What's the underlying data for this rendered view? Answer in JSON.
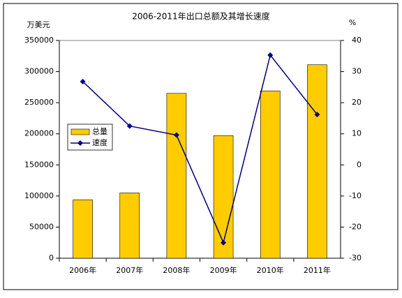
{
  "chart_data": {
    "type": "bar",
    "title": "2006-2011年出口总额及其增长速度",
    "y_label": "万美元",
    "y2_label": "%",
    "categories": [
      "2006年",
      "2007年",
      "2008年",
      "2009年",
      "2010年",
      "2011年"
    ],
    "series": [
      {
        "name": "总量",
        "type": "bar",
        "color": "#ffcc00",
        "values": [
          94000,
          105000,
          265000,
          197000,
          269000,
          311000
        ]
      },
      {
        "name": "速度",
        "type": "line",
        "axis": "y2",
        "color": "#000080",
        "values": [
          26.8,
          12.5,
          9.6,
          -25,
          35.3,
          16.2
        ]
      }
    ],
    "ylim": [
      0,
      350000
    ],
    "yticks": [
      0,
      50000,
      100000,
      150000,
      200000,
      250000,
      300000,
      350000
    ],
    "y2lim": [
      -30,
      40
    ],
    "y2ticks": [
      -30,
      -20,
      -10,
      0,
      10,
      20,
      30,
      40
    ]
  }
}
